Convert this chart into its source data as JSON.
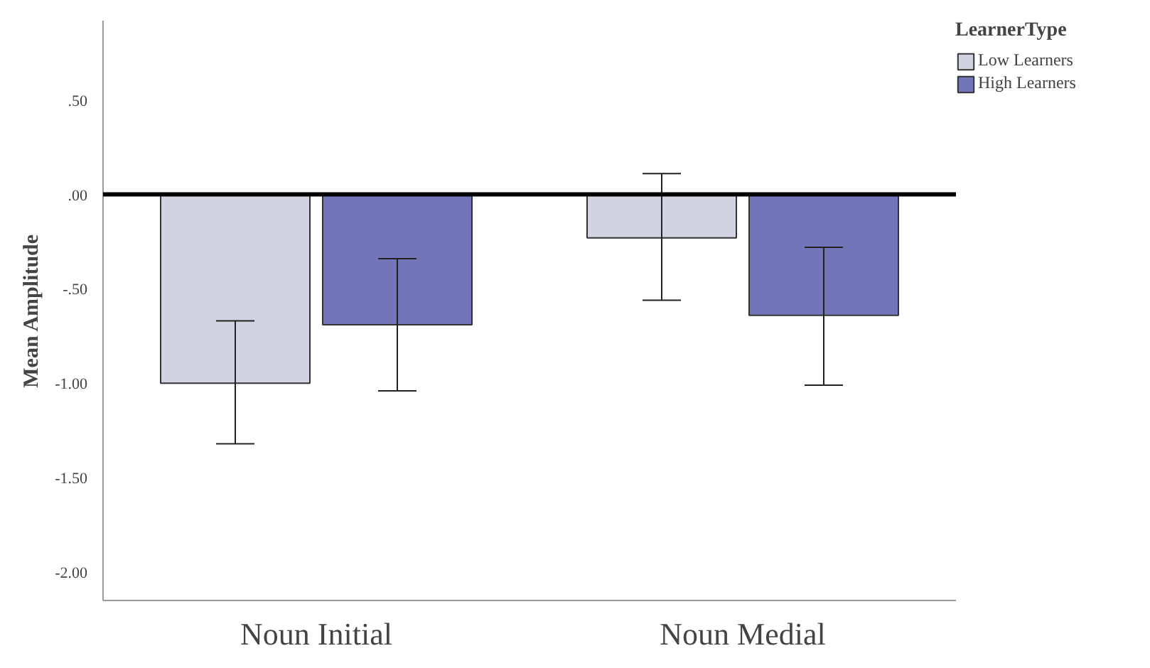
{
  "chart_data": {
    "type": "bar",
    "ylabel": "Mean Amplitude",
    "legend_title": "LearnerType",
    "categories": [
      "Noun Initial",
      "Noun Medial"
    ],
    "series": [
      {
        "name": "Low Learners",
        "color": "#d1d3e3",
        "values": [
          -1.0,
          -0.23
        ],
        "errors": [
          [
            -1.32,
            -0.67
          ],
          [
            -0.56,
            0.11
          ]
        ]
      },
      {
        "name": "High Learners",
        "color": "#7276b9",
        "values": [
          -0.69,
          -0.64
        ],
        "errors": [
          [
            -1.04,
            -0.34
          ],
          [
            -1.01,
            -0.28
          ]
        ]
      }
    ],
    "ylim": [
      -2.15,
      0.92
    ],
    "yticks": [
      {
        "value": 0.5,
        "label": ".50"
      },
      {
        "value": 0,
        "label": ".00"
      },
      {
        "value": -0.5,
        "label": "-.50"
      },
      {
        "value": -1.0,
        "label": "-1.00"
      },
      {
        "value": -1.5,
        "label": "-1.50"
      },
      {
        "value": -2.0,
        "label": "-2.00"
      }
    ],
    "ref_lines": [
      {
        "axis": "y",
        "value": 0,
        "color": "#000000"
      }
    ],
    "grid": false,
    "legend": "top right"
  }
}
